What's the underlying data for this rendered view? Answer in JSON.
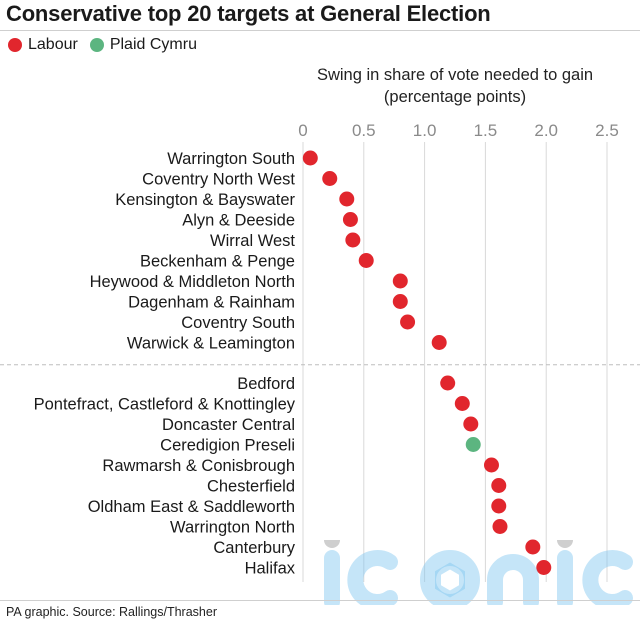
{
  "title": "Conservative top 20 targets at General Election",
  "legend": [
    {
      "label": "Labour",
      "color": "#e1262d"
    },
    {
      "label": "Plaid Cymru",
      "color": "#5cb580"
    }
  ],
  "axis_title": {
    "line1": "Swing in share of vote needed to gain",
    "line2": "(percentage points)"
  },
  "source": "PA graphic. Source: Rallings/Thrasher",
  "watermark": "iconic",
  "chart_data": {
    "type": "scatter",
    "title": "Conservative top 20 targets at General Election",
    "xlabel": "Swing in share of vote needed to gain (percentage points)",
    "xlim": [
      0,
      2.5
    ],
    "xticks": [
      "0",
      "0.5",
      "1.0",
      "1.5",
      "2.0",
      "2.5"
    ],
    "xtick_values": [
      0,
      0.5,
      1.0,
      1.5,
      2.0,
      2.5
    ],
    "grid": true,
    "legend_position": "top-left",
    "group_break_after": 10,
    "points": [
      {
        "label": "Warrington South",
        "value": 0.06,
        "party": "Labour"
      },
      {
        "label": "Coventry North West",
        "value": 0.22,
        "party": "Labour"
      },
      {
        "label": "Kensington & Bayswater",
        "value": 0.36,
        "party": "Labour"
      },
      {
        "label": "Alyn & Deeside",
        "value": 0.39,
        "party": "Labour"
      },
      {
        "label": "Wirral West",
        "value": 0.41,
        "party": "Labour"
      },
      {
        "label": "Beckenham & Penge",
        "value": 0.52,
        "party": "Labour"
      },
      {
        "label": "Heywood & Middleton North",
        "value": 0.8,
        "party": "Labour"
      },
      {
        "label": "Dagenham & Rainham",
        "value": 0.8,
        "party": "Labour"
      },
      {
        "label": "Coventry South",
        "value": 0.86,
        "party": "Labour"
      },
      {
        "label": "Warwick & Leamington",
        "value": 1.12,
        "party": "Labour"
      },
      {
        "label": "Bedford",
        "value": 1.19,
        "party": "Labour"
      },
      {
        "label": "Pontefract, Castleford & Knottingley",
        "value": 1.31,
        "party": "Labour"
      },
      {
        "label": "Doncaster Central",
        "value": 1.38,
        "party": "Labour"
      },
      {
        "label": "Ceredigion Preseli",
        "value": 1.4,
        "party": "Plaid Cymru"
      },
      {
        "label": "Rawmarsh & Conisbrough",
        "value": 1.55,
        "party": "Labour"
      },
      {
        "label": "Chesterfield",
        "value": 1.61,
        "party": "Labour"
      },
      {
        "label": "Oldham East & Saddleworth",
        "value": 1.61,
        "party": "Labour"
      },
      {
        "label": "Warrington North",
        "value": 1.62,
        "party": "Labour"
      },
      {
        "label": "Canterbury",
        "value": 1.89,
        "party": "Labour"
      },
      {
        "label": "Halifax",
        "value": 1.98,
        "party": "Labour"
      }
    ]
  }
}
